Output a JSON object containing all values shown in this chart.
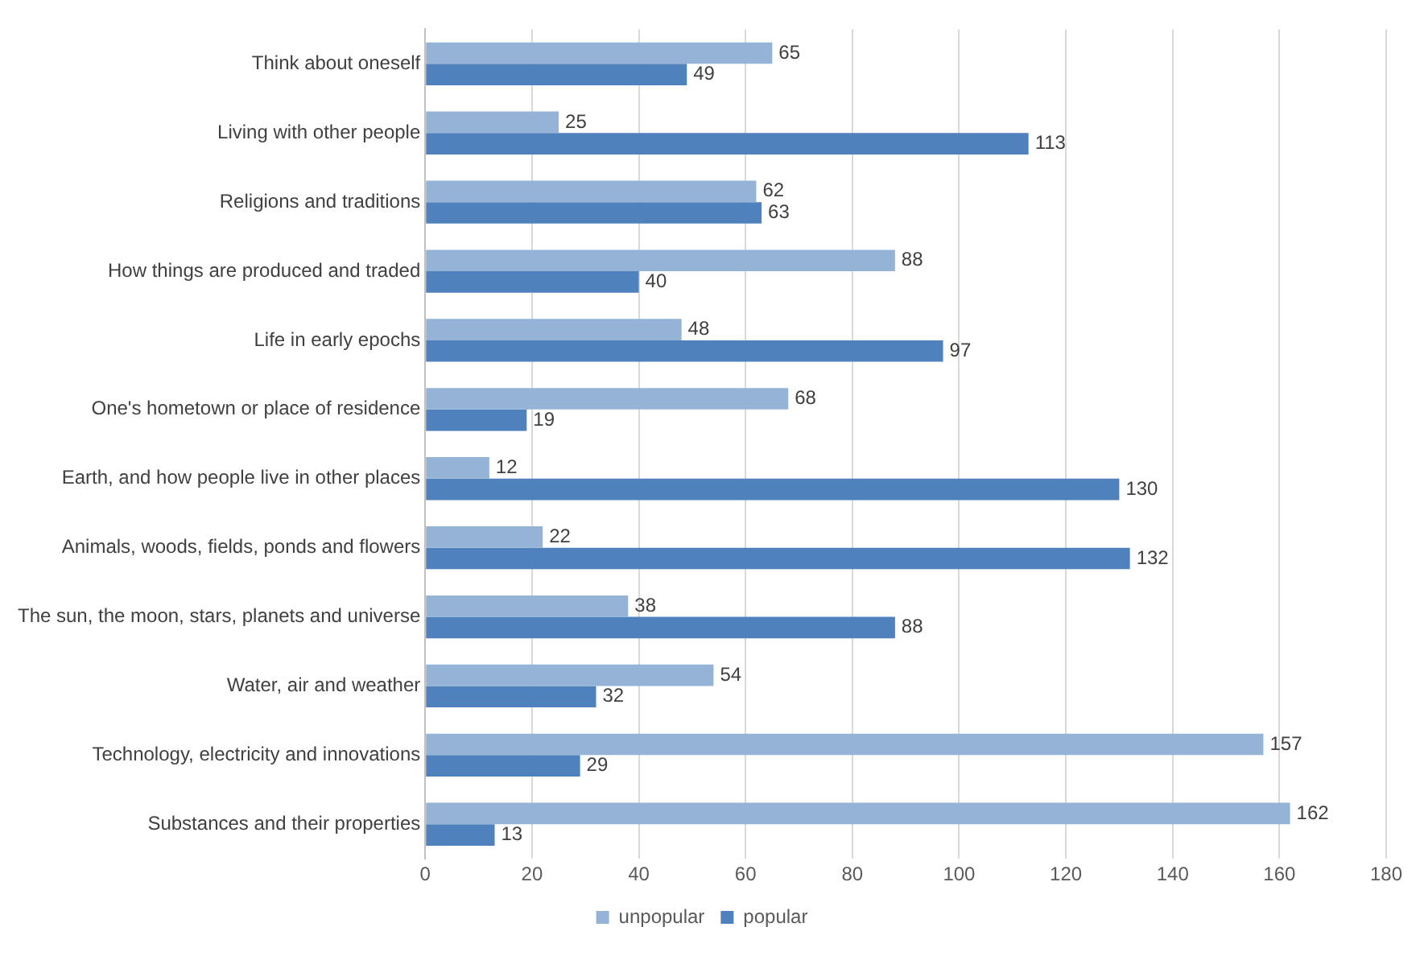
{
  "chart_data": {
    "type": "bar",
    "orientation": "horizontal",
    "categories": [
      "Think about oneself",
      "Living with other people",
      "Religions and traditions",
      "How things are produced and traded",
      "Life in early epochs",
      "One's hometown or place of residence",
      "Earth, and how people live in other places",
      "Animals, woods, fields, ponds and flowers",
      "The sun, the moon, stars, planets and universe",
      "Water, air and weather",
      "Technology, electricity and innovations",
      "Substances and their properties"
    ],
    "series": [
      {
        "name": "unpopular",
        "color": "#95b3d7",
        "values": [
          65,
          25,
          62,
          88,
          48,
          68,
          12,
          22,
          38,
          54,
          157,
          162
        ]
      },
      {
        "name": "popular",
        "color": "#4f81bd",
        "values": [
          49,
          113,
          63,
          40,
          97,
          19,
          130,
          132,
          88,
          32,
          29,
          13
        ]
      }
    ],
    "xlim": [
      0,
      180
    ],
    "xticks": [
      0,
      20,
      40,
      60,
      80,
      100,
      120,
      140,
      160,
      180
    ],
    "grid": "x",
    "legend": "bottom",
    "data_labels": true
  }
}
